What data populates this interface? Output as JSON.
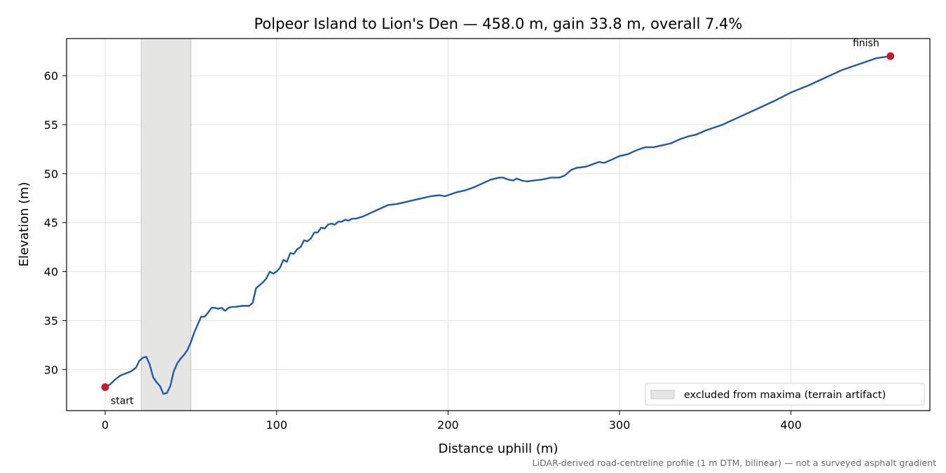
{
  "chart_data": {
    "type": "line",
    "title": "Polpeor Island to Lion's Den — 458.0 m, gain 33.8 m, overall 7.4%",
    "xlabel": "Distance uphill (m)",
    "ylabel": "Elevation (m)",
    "xlim": [
      -22.5,
      481
    ],
    "ylim": [
      25.8,
      63.8
    ],
    "xticks": [
      0,
      100,
      200,
      300,
      400
    ],
    "yticks": [
      30,
      35,
      40,
      45,
      50,
      55,
      60
    ],
    "grid": true,
    "line_color": "#1f5aa8",
    "marker_color": "#c0202b",
    "shade_color": "#d9d9d9",
    "excluded_region": {
      "x_start": 21,
      "x_end": 50
    },
    "legend": {
      "placement": "lower-right",
      "entries": [
        "excluded from maxima (terrain artifact)"
      ]
    },
    "annotations": {
      "start": "start",
      "finish": "finish"
    },
    "footnote": "LiDAR-derived road-centreline profile (1 m DTM, bilinear) — not a surveyed asphalt gradient",
    "markers": [
      {
        "label": "start",
        "x": 0,
        "y": 28.2
      },
      {
        "label": "finish",
        "x": 458,
        "y": 62.0
      }
    ],
    "series": [
      {
        "x": [
          0,
          3,
          6,
          9,
          12,
          15,
          18,
          20,
          22,
          24,
          26,
          28,
          30,
          32,
          34,
          36,
          38,
          40,
          42,
          44,
          46,
          48,
          50,
          52,
          54,
          56,
          58,
          60,
          62,
          64,
          66,
          68,
          70,
          72,
          74,
          76,
          80,
          84,
          86,
          88,
          90,
          92,
          94,
          96,
          98,
          100,
          102,
          104,
          106,
          108,
          110,
          112,
          114,
          116,
          118,
          120,
          122,
          124,
          126,
          128,
          130,
          132,
          134,
          136,
          138,
          140,
          142,
          144,
          146,
          150,
          155,
          160,
          165,
          170,
          175,
          180,
          185,
          190,
          195,
          198,
          200,
          205,
          210,
          215,
          220,
          225,
          230,
          232,
          235,
          238,
          240,
          243,
          246,
          250,
          255,
          260,
          265,
          268,
          270,
          272,
          275,
          280,
          285,
          288,
          291,
          295,
          300,
          305,
          310,
          315,
          320,
          325,
          330,
          335,
          340,
          345,
          350,
          360,
          370,
          380,
          390,
          400,
          410,
          420,
          430,
          440,
          450,
          458
        ],
        "y": [
          28.2,
          28.5,
          29.0,
          29.4,
          29.6,
          29.8,
          30.2,
          30.9,
          31.2,
          31.3,
          30.5,
          29.2,
          28.7,
          28.3,
          27.5,
          27.6,
          28.3,
          29.8,
          30.6,
          31.1,
          31.5,
          32.0,
          32.8,
          33.8,
          34.6,
          35.4,
          35.4,
          35.8,
          36.3,
          36.3,
          36.2,
          36.3,
          36.0,
          36.3,
          36.4,
          36.4,
          36.5,
          36.5,
          36.8,
          38.3,
          38.6,
          38.9,
          39.3,
          40.0,
          39.8,
          40.0,
          40.4,
          41.2,
          41.0,
          41.9,
          41.8,
          42.3,
          42.5,
          43.2,
          43.1,
          43.4,
          44.0,
          44.0,
          44.5,
          44.4,
          44.8,
          44.9,
          44.8,
          45.1,
          45.1,
          45.3,
          45.2,
          45.4,
          45.4,
          45.6,
          46.0,
          46.4,
          46.8,
          46.9,
          47.1,
          47.3,
          47.5,
          47.7,
          47.8,
          47.7,
          47.8,
          48.1,
          48.3,
          48.6,
          49.0,
          49.4,
          49.6,
          49.6,
          49.4,
          49.3,
          49.5,
          49.3,
          49.2,
          49.3,
          49.4,
          49.6,
          49.6,
          49.8,
          50.1,
          50.4,
          50.6,
          50.7,
          51.0,
          51.2,
          51.1,
          51.4,
          51.8,
          52.0,
          52.4,
          52.7,
          52.7,
          52.9,
          53.1,
          53.5,
          53.8,
          54.0,
          54.4,
          55.0,
          55.8,
          56.6,
          57.4,
          58.3,
          59.0,
          59.8,
          60.6,
          61.2,
          61.8,
          62.0
        ]
      }
    ]
  }
}
